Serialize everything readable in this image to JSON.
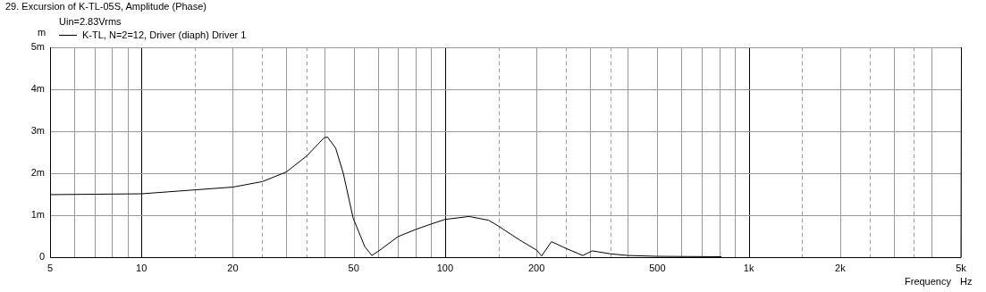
{
  "chart_data": {
    "type": "line",
    "title": "29. Excursion of K-TL-05S, Amplitude (Phase)",
    "subtitle": "Uin=2.83Vrms",
    "xlabel": "Frequency",
    "ylabel": "m",
    "annotations": [
      "Hz"
    ],
    "log": "x",
    "grid": true,
    "legend": "top left",
    "marker": "none",
    "line_style": "solid",
    "xlim": [
      5,
      5000
    ],
    "ylim": [
      0,
      5
    ],
    "xticks": [
      5,
      {
        "value": 6,
        "label": null
      },
      {
        "value": 7,
        "label": null
      },
      {
        "value": 8,
        "label": null
      },
      {
        "value": 9,
        "label": null
      },
      10,
      {
        "value": 15,
        "label": null
      },
      20,
      {
        "value": 25,
        "label": null
      },
      {
        "value": 30,
        "label": null
      },
      {
        "value": 35,
        "label": null
      },
      {
        "value": 40,
        "label": null
      },
      50,
      {
        "value": 60,
        "label": null
      },
      {
        "value": 70,
        "label": null
      },
      {
        "value": 80,
        "label": null
      },
      {
        "value": 90,
        "label": null
      },
      100,
      {
        "value": 150,
        "label": null
      },
      200,
      {
        "value": 250,
        "label": null
      },
      {
        "value": 300,
        "label": null
      },
      {
        "value": 350,
        "label": null
      },
      {
        "value": 400,
        "label": null
      },
      500,
      {
        "value": 600,
        "label": null
      },
      {
        "value": 700,
        "label": null
      },
      {
        "value": 800,
        "label": null
      },
      {
        "value": 900,
        "label": null
      },
      {
        "value": 1000,
        "label": "1k"
      },
      {
        "value": 1500,
        "label": null
      },
      {
        "value": 2000,
        "label": "2k"
      },
      {
        "value": 2500,
        "label": null
      },
      {
        "value": 3000,
        "label": null
      },
      {
        "value": 3500,
        "label": null
      },
      {
        "value": 4000,
        "label": null
      },
      {
        "value": 5000,
        "label": "5k"
      }
    ],
    "yticks": [
      0,
      {
        "value": 1,
        "label": "1m"
      },
      {
        "value": 2,
        "label": "2m"
      },
      {
        "value": 3,
        "label": "3m"
      },
      {
        "value": 4,
        "label": "4m"
      },
      {
        "value": 5,
        "label": "5m"
      }
    ],
    "series": [
      {
        "name": "K-TL, N=2=12, Driver (diaph) Driver 1",
        "color": "#000000",
        "x": [
          5,
          10,
          20,
          25,
          30,
          35,
          40,
          41,
          43.6,
          46.2,
          49.8,
          54.4,
          57.4,
          61,
          70,
          80,
          90,
          100,
          120,
          139,
          150,
          175,
          200,
          208,
          224,
          250,
          284,
          305,
          350,
          400,
          500,
          813
        ],
        "values": [
          1.49,
          1.51,
          1.67,
          1.8,
          2.03,
          2.41,
          2.85,
          2.86,
          2.6,
          2.0,
          0.93,
          0.25,
          0.04,
          0.17,
          0.49,
          0.66,
          0.79,
          0.9,
          0.97,
          0.88,
          0.74,
          0.42,
          0.17,
          0.03,
          0.37,
          0.21,
          0.04,
          0.15,
          0.08,
          0.04,
          0.02,
          0.01
        ]
      }
    ]
  }
}
